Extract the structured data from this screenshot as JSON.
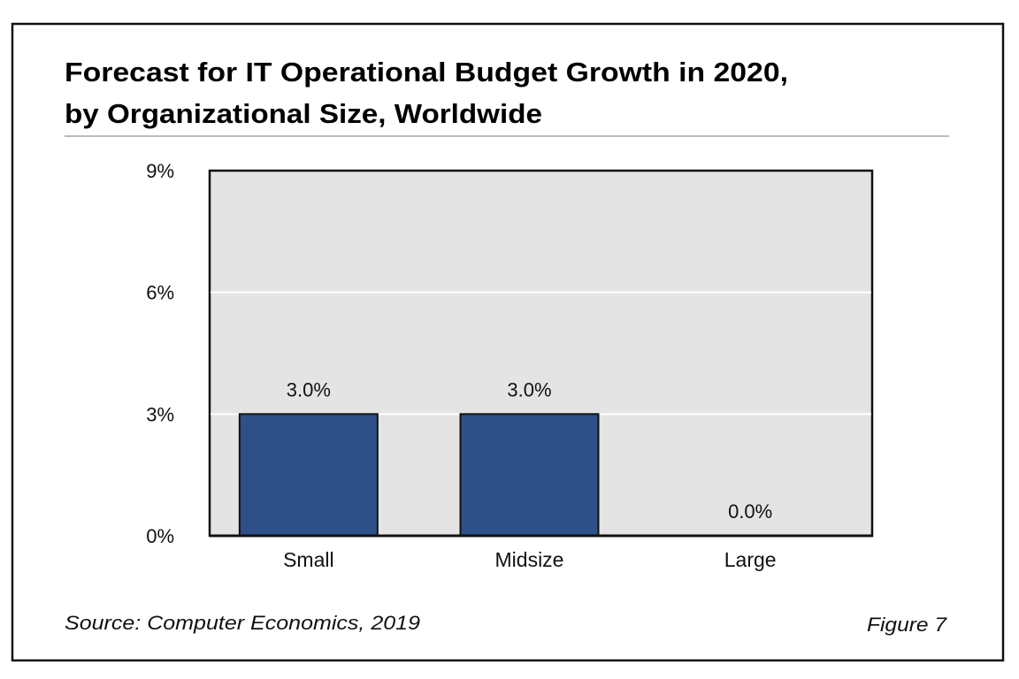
{
  "chart_data": {
    "type": "bar",
    "title_lines": [
      "Forecast for IT Operational Budget Growth in 2020,",
      "by Organizational Size, Worldwide"
    ],
    "categories": [
      "Small",
      "Midsize",
      "Large"
    ],
    "values": [
      3.0,
      3.0,
      0.0
    ],
    "data_labels": [
      "3.0%",
      "3.0%",
      "0.0%"
    ],
    "yticks": [
      0,
      3,
      6,
      9
    ],
    "ytick_labels": [
      "0%",
      "3%",
      "6%",
      "9%"
    ],
    "ylim": [
      0,
      9
    ],
    "xlabel": "",
    "ylabel": "",
    "grid": true,
    "colors": {
      "bar": "#2e5088",
      "plot_bg": "#e4e4e4",
      "grid": "#ffffff"
    }
  },
  "footer": {
    "source": "Source: Computer Economics, 2019",
    "figure": "Figure 7"
  }
}
